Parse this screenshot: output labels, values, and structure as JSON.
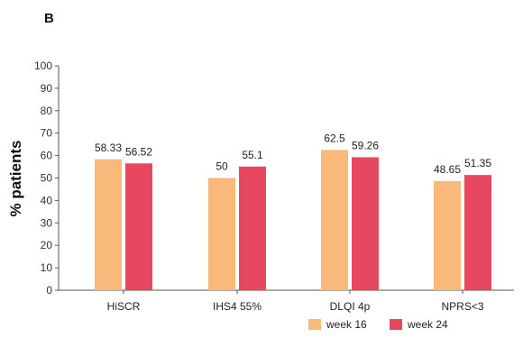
{
  "panel_label": "B",
  "chart_data": {
    "type": "bar",
    "title": "",
    "xlabel": "",
    "ylabel": "% patients",
    "ylim": [
      0,
      100
    ],
    "yticks": [
      0,
      10,
      20,
      30,
      40,
      50,
      60,
      70,
      80,
      90,
      100
    ],
    "categories": [
      "HiSCR",
      "IHS4 55%",
      "DLQI 4p",
      "NPRS<3"
    ],
    "series": [
      {
        "name": "week 16",
        "color": "#F9B97A",
        "values": [
          58.33,
          50,
          62.5,
          48.65
        ]
      },
      {
        "name": "week 24",
        "color": "#E8485F",
        "values": [
          56.52,
          55.1,
          59.26,
          51.35
        ]
      }
    ],
    "value_labels": [
      [
        "58.33",
        "50",
        "62.5",
        "48.65"
      ],
      [
        "56.52",
        "55.1",
        "59.26",
        "51.35"
      ]
    ],
    "grid": false,
    "legend_position": "bottom-right"
  }
}
